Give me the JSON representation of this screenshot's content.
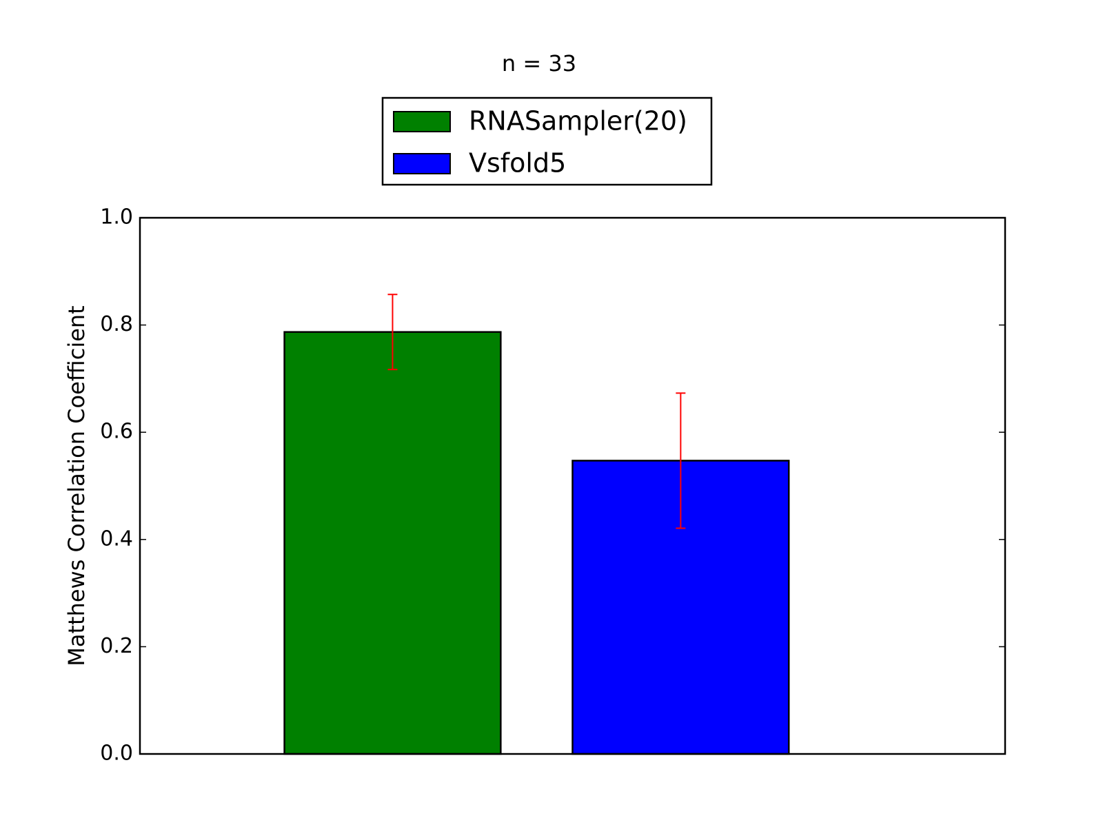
{
  "chart_data": {
    "type": "bar",
    "title": "n = 33",
    "y_label": "Matthews Correlation Coefficient",
    "series": [
      {
        "name": "RNASampler(20)",
        "color": "#008000",
        "values": [
          0.787
        ],
        "errors": [
          0.07
        ]
      },
      {
        "name": "Vsfold5",
        "color": "#0000ff",
        "values": [
          0.547
        ],
        "errors": [
          0.126
        ]
      }
    ],
    "error_color": "#ff0000",
    "ylim": [
      0,
      1
    ],
    "yticks": [
      {
        "value": 0,
        "label": "0.0"
      },
      0.2,
      0.4,
      0.6,
      0.8,
      {
        "value": 1,
        "label": "1.0"
      }
    ],
    "legend": "upper center"
  }
}
